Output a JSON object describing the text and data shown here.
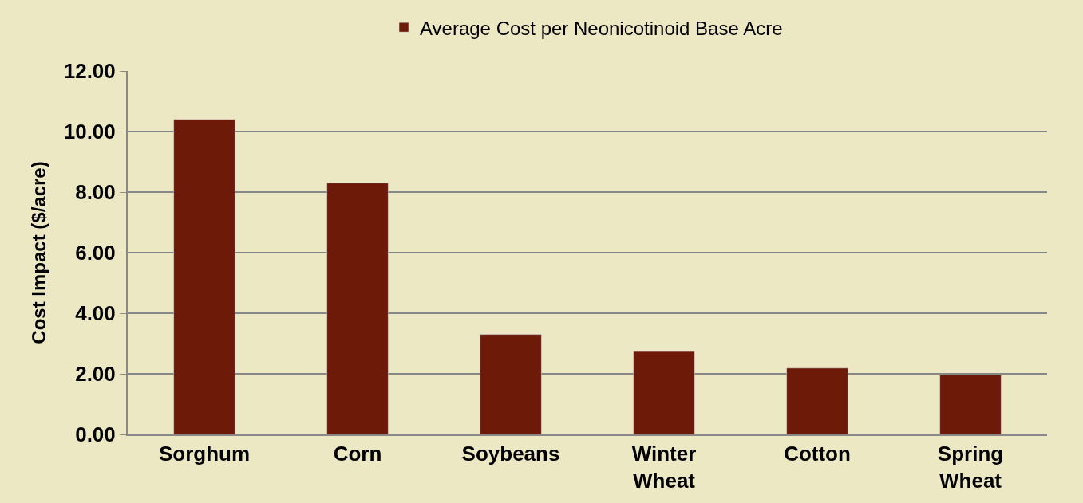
{
  "chart_data": {
    "type": "bar",
    "categories": [
      "Sorghum",
      "Corn",
      "Soybeans",
      "Winter Wheat",
      "Cotton",
      "Spring Wheat"
    ],
    "series": [
      {
        "name": "Average Cost per Neonicotinoid Base Acre",
        "color": "#6d1a08",
        "values": [
          10.4,
          8.3,
          3.3,
          2.76,
          2.19,
          1.96
        ]
      }
    ],
    "ylabel": "Cost Impact ($/acre)",
    "ylim": [
      0,
      12
    ],
    "yticks": [
      {
        "value": 0,
        "label": "0.00"
      },
      {
        "value": 2,
        "label": "2.00"
      },
      {
        "value": 4,
        "label": "4.00"
      },
      {
        "value": 6,
        "label": "6.00"
      },
      {
        "value": 8,
        "label": "8.00"
      },
      {
        "value": 10,
        "label": "10.00"
      },
      {
        "value": 12,
        "label": "12.00"
      }
    ],
    "grid": "y",
    "legend": "top"
  }
}
